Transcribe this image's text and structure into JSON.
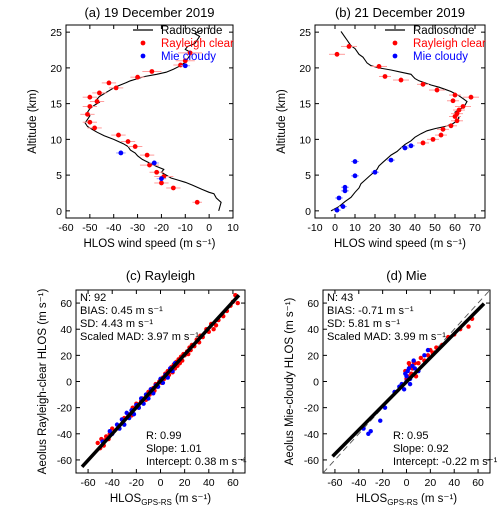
{
  "colors": {
    "rayleigh": "#ff0000",
    "mie": "#0000ff",
    "radiosonde": "#000000",
    "errorbar_rayleigh": "#ff9c9c",
    "errorbar_mie": "#9c9cff"
  },
  "chart_data": [
    {
      "panel": "a",
      "type": "scatter",
      "title": "(a) 19 December 2019",
      "xlabel": "HLOS wind speed (m s⁻¹)",
      "ylabel": "Altitude (km)",
      "xlim": [
        -60,
        10
      ],
      "ylim": [
        -1,
        26
      ],
      "xticks": [
        "-60",
        "-50",
        "-40",
        "-30",
        "-20",
        "-10",
        "0",
        "10"
      ],
      "yticks": [
        "0",
        "5",
        "10",
        "15",
        "20",
        "25"
      ],
      "legend": [
        "Radiosonde",
        "Rayleigh clear",
        "Mie cloudy"
      ],
      "legend_position": "top-right",
      "radiosonde": {
        "x": [
          4,
          4.5,
          5,
          3,
          2,
          0,
          -3,
          -5,
          -7,
          -10,
          -13,
          -16,
          -18,
          -20,
          -19,
          -22,
          -25,
          -28,
          -30,
          -31,
          -33,
          -34,
          -36,
          -40,
          -44,
          -47,
          -49,
          -51,
          -52,
          -51,
          -50,
          -51,
          -50,
          -48,
          -46,
          -47,
          -46,
          -44,
          -42,
          -40,
          -38,
          -35,
          -33,
          -30,
          -27,
          -22,
          -18,
          -15,
          -12,
          -10,
          -9,
          -8,
          -8,
          -10,
          -9,
          -6,
          -5,
          -4,
          -6,
          -3
        ],
        "y": [
          0,
          0.6,
          1.2,
          1.8,
          2.4,
          2.6,
          3,
          3.3,
          3.6,
          4,
          4.3,
          4.6,
          5,
          5.4,
          5.8,
          6.2,
          6.7,
          7.2,
          7.7,
          8.1,
          8.5,
          9,
          9.4,
          10,
          10.5,
          11,
          11.4,
          11.8,
          12.3,
          12.8,
          13.3,
          13.8,
          14.3,
          14.8,
          15.2,
          15.6,
          16,
          16.4,
          16.8,
          17.2,
          17.5,
          17.9,
          18.2,
          18.5,
          18.8,
          19.1,
          19.4,
          19.8,
          20.3,
          20.8,
          21.3,
          21.8,
          22.2,
          22.6,
          23.0,
          23.4,
          23.9,
          24.4,
          24.8,
          25.3
        ]
      },
      "rayleigh": {
        "x": [
          -5,
          -15,
          -20,
          -19,
          -22,
          -25,
          -26,
          -31,
          -34,
          -38,
          -48,
          -50,
          -51,
          -50,
          -47,
          -50,
          -46,
          -39,
          -42,
          -30,
          -24,
          -12,
          -10,
          -8
        ],
        "y": [
          1.2,
          3.2,
          3.9,
          4.8,
          5.4,
          6.4,
          7.8,
          9.0,
          9.7,
          10.6,
          11.6,
          12.4,
          13.5,
          14.6,
          15.3,
          15.9,
          16.5,
          17.2,
          17.9,
          18.7,
          19.5,
          20.4,
          21.0,
          22.1
        ],
        "xerr": [
          2,
          3,
          3,
          4,
          3,
          4,
          3,
          3,
          3,
          3,
          3,
          3,
          3,
          3,
          3,
          3,
          3,
          3,
          3,
          3,
          4,
          3,
          4,
          5
        ]
      },
      "mie": {
        "x": [
          -20,
          -23,
          -37,
          -10
        ],
        "y": [
          4.5,
          6.7,
          8.1,
          20.3
        ],
        "xerr": [
          2,
          2,
          2,
          2
        ]
      }
    },
    {
      "panel": "b",
      "type": "scatter",
      "title": "(b) 21 December 2019",
      "xlabel": "HLOS wind speed (m s⁻¹)",
      "ylabel": "Altitude (km)",
      "xlim": [
        -10,
        75
      ],
      "ylim": [
        -1,
        26
      ],
      "xticks": [
        "-10",
        "0",
        "10",
        "20",
        "30",
        "40",
        "50",
        "60",
        "70"
      ],
      "yticks": [
        "0",
        "5",
        "10",
        "15",
        "20",
        "25"
      ],
      "legend": [
        "Radiosonde",
        "Rayleigh clear",
        "Mie cloudy"
      ],
      "legend_position": "top-right",
      "radiosonde": {
        "x": [
          -2,
          2,
          5,
          8,
          10,
          12,
          13,
          15,
          17,
          19,
          21,
          22,
          24,
          26,
          28,
          31,
          33,
          35,
          38,
          40,
          43,
          46,
          50,
          55,
          59,
          61,
          62,
          61,
          60,
          63,
          65,
          66,
          64,
          62,
          60,
          58,
          55,
          52,
          48,
          45,
          42,
          40,
          39,
          38,
          33,
          28,
          22,
          18,
          16,
          15,
          14,
          12,
          11,
          10,
          8,
          7,
          6,
          5,
          4,
          3
        ],
        "y": [
          0,
          0.6,
          1.3,
          1.9,
          2.6,
          3.2,
          3.8,
          4.3,
          4.8,
          5.3,
          5.8,
          6.3,
          6.8,
          7.3,
          7.8,
          8.3,
          8.8,
          9.3,
          9.8,
          10.3,
          10.8,
          11.2,
          11.5,
          11.8,
          12.2,
          12.6,
          13,
          13.4,
          13.8,
          14.3,
          14.8,
          15.3,
          15.7,
          16.1,
          16.4,
          16.7,
          17.0,
          17.3,
          17.6,
          17.9,
          18.2,
          18.5,
          18.8,
          19.1,
          19.4,
          19.7,
          20.0,
          20.3,
          20.7,
          21.1,
          21.5,
          21.9,
          22.3,
          22.7,
          23.1,
          23.5,
          23.9,
          24.3,
          24.7,
          25.1
        ]
      },
      "rayleigh": {
        "x": [
          44,
          49,
          53,
          54,
          58,
          61,
          60,
          61,
          62,
          64,
          68,
          59,
          60,
          51,
          44,
          33,
          25,
          22,
          1,
          7
        ],
        "y": [
          9.5,
          10.0,
          10.6,
          11.4,
          11.9,
          12.6,
          13.2,
          13.6,
          14.1,
          14.6,
          15.9,
          15.4,
          16.2,
          16.9,
          17.7,
          18.3,
          18.8,
          20.2,
          21.9,
          23.0
        ],
        "xerr": [
          3,
          3,
          3,
          3,
          3,
          3,
          3,
          3,
          3,
          4,
          4,
          3,
          3,
          4,
          3,
          4,
          3,
          4,
          4,
          4
        ]
      },
      "mie": {
        "x": [
          1,
          4,
          2,
          5,
          5,
          10,
          10,
          20,
          28,
          35,
          38
        ],
        "y": [
          0.1,
          0.6,
          1.8,
          2.8,
          3.3,
          4.9,
          6.9,
          5.4,
          7.1,
          8.8,
          9.1
        ],
        "xerr": [
          2,
          2,
          2,
          2,
          2,
          2,
          2,
          2,
          2,
          2,
          2
        ]
      }
    },
    {
      "panel": "c",
      "type": "scatter",
      "title": "(c) Rayleigh",
      "xlabel": "HLOS",
      "xlabel_sub": "GPS-RS",
      "xlabel_unit": "(m s⁻¹)",
      "ylabel": "Aeolus Rayleigh-clear HLOS (m s⁻¹)",
      "xlim": [
        -70,
        70
      ],
      "ylim": [
        -70,
        70
      ],
      "xticks": [
        "-60",
        "-40",
        "-20",
        "0",
        "20",
        "40",
        "60"
      ],
      "yticks": [
        "-60",
        "-40",
        "-20",
        "0",
        "20",
        "40",
        "60"
      ],
      "stats_top": [
        "N:    92",
        "BIAS: 0.45 m s⁻¹",
        "SD:  4.43 m s⁻¹",
        "Scaled MAD:  3.97 m s⁻¹"
      ],
      "stats_bottom": [
        "R:          0.99",
        "Slope:    1.01",
        "Intercept:  0.38 m s⁻¹"
      ],
      "fit": {
        "slope": 1.01,
        "intercept": 0.38,
        "x_range": [
          -65,
          65
        ]
      },
      "rayleigh": {
        "x": [
          -52,
          -50,
          -49,
          -47,
          -46,
          -45,
          -43,
          -42,
          -40,
          -31,
          -30,
          -27,
          -24,
          -23,
          -20,
          -18,
          -16,
          -15,
          -12,
          -10,
          -9,
          -8,
          -6,
          -5,
          -4,
          -3,
          -1,
          0,
          1,
          2,
          3,
          4,
          5,
          6,
          7,
          8,
          9,
          10,
          11,
          12,
          13,
          14,
          15,
          16,
          17,
          18,
          19,
          20,
          22,
          23,
          24,
          25,
          26,
          28,
          30,
          32,
          33,
          35,
          38,
          40,
          42,
          44,
          46,
          48,
          52,
          55,
          58,
          60,
          62,
          64
        ],
        "y": [
          -47,
          -51,
          -44,
          -49,
          -45,
          -42,
          -44,
          -40,
          -36,
          -31,
          -28,
          -25,
          -26,
          -20,
          -17,
          -20,
          -15,
          -13,
          -14,
          -8,
          -10,
          -6,
          -5,
          -7,
          -2,
          -4,
          0,
          1,
          -1,
          3,
          2,
          6,
          4,
          8,
          5,
          9,
          11,
          7,
          13,
          10,
          15,
          12,
          17,
          14,
          19,
          16,
          21,
          20,
          23,
          21,
          26,
          24,
          28,
          27,
          32,
          30,
          35,
          34,
          40,
          38,
          44,
          40,
          43,
          47,
          50,
          54,
          58,
          61,
          66,
          60
        ],
        "size": "small"
      },
      "mie": {
        "x": [
          -48,
          -42,
          -40,
          -36,
          -34,
          -32,
          -30,
          -28,
          -26,
          -24,
          -22,
          -20,
          -18,
          -16,
          -14,
          -12,
          -10,
          -8,
          -6,
          -4,
          -2,
          0,
          2,
          4,
          6,
          8,
          10,
          12
        ],
        "y": [
          -46,
          -38,
          -40,
          -33,
          -36,
          -29,
          -33,
          -24,
          -28,
          -22,
          -25,
          -18,
          -20,
          -13,
          -17,
          -10,
          -13,
          -6,
          -9,
          -3,
          -4,
          2,
          -1,
          5,
          3,
          10,
          8,
          14
        ],
        "size": "small"
      }
    },
    {
      "panel": "d",
      "type": "scatter",
      "title": "(d) Mie",
      "xlabel": "HLOS",
      "xlabel_sub": "GPS-RS",
      "xlabel_unit": "(m s⁻¹)",
      "ylabel": "Aeolus Mie-cloudy HLOS (m s⁻¹)",
      "xlim": [
        -70,
        70
      ],
      "ylim": [
        -70,
        70
      ],
      "xticks": [
        "-60",
        "-40",
        "-20",
        "0",
        "20",
        "40",
        "60"
      ],
      "yticks": [
        "-60",
        "-40",
        "-20",
        "0",
        "20",
        "40",
        "60"
      ],
      "stats_top": [
        "N:    43",
        "BIAS: -0.71 m s⁻¹",
        "SD:  5.81 m s⁻¹",
        "Scaled MAD:  3.99 m s⁻¹"
      ],
      "stats_bottom": [
        "R:          0.95",
        "Slope:     0.92",
        "Intercept: -0.22 m s⁻¹"
      ],
      "fit": {
        "slope": 0.92,
        "intercept": -0.22,
        "x_range": [
          -62,
          65
        ]
      },
      "rayleigh": {
        "x": [
          -1,
          0,
          1,
          2,
          3,
          4,
          5,
          6,
          7,
          8,
          10,
          12,
          15,
          18,
          20,
          22,
          25,
          30,
          35,
          40,
          45,
          52,
          55
        ],
        "y": [
          8,
          2,
          4,
          14,
          12,
          6,
          10,
          15,
          14,
          4,
          14,
          18,
          16,
          20,
          24,
          22,
          26,
          28,
          34,
          36,
          40,
          42,
          48
        ],
        "size": "small"
      },
      "mie": {
        "x": [
          -36,
          -32,
          -30,
          -22,
          -18,
          -10,
          -6,
          -4,
          -2,
          -1,
          0,
          0,
          1,
          2,
          3,
          3,
          5,
          6,
          7,
          10,
          15,
          18
        ],
        "y": [
          -36,
          -40,
          -38,
          -30,
          -20,
          -8,
          -4,
          -2,
          -6,
          6,
          0,
          4,
          8,
          10,
          2,
          -2,
          12,
          16,
          10,
          8,
          20,
          24
        ],
        "size": "small"
      }
    }
  ]
}
